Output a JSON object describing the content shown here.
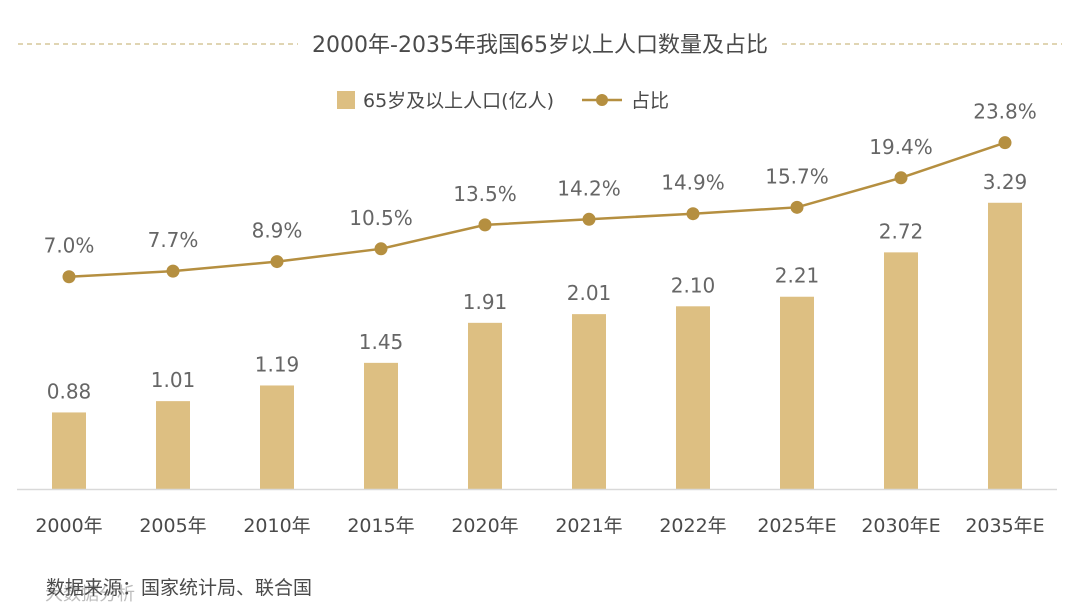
{
  "colors": {
    "bar": "#ddbf82",
    "line": "#b58f40",
    "dash": "#d6c79a",
    "axis": "#d9d9d9"
  },
  "chart_data": {
    "type": "bar",
    "title": "2000年-2035年我国65岁以上人口数量及占比",
    "categories": [
      "2000年",
      "2005年",
      "2010年",
      "2015年",
      "2020年",
      "2021年",
      "2022年",
      "2025年E",
      "2030年E",
      "2035年E"
    ],
    "series": [
      {
        "name": "65岁及以上人口(亿人)",
        "type": "bar",
        "values": [
          0.88,
          1.01,
          1.19,
          1.45,
          1.91,
          2.01,
          2.1,
          2.21,
          2.72,
          3.29
        ],
        "labels": [
          "0.88",
          "1.01",
          "1.19",
          "1.45",
          "1.91",
          "2.01",
          "2.10",
          "2.21",
          "2.72",
          "3.29"
        ]
      },
      {
        "name": "占比",
        "type": "line",
        "values": [
          7.0,
          7.7,
          8.9,
          10.5,
          13.5,
          14.2,
          14.9,
          15.7,
          19.4,
          23.8
        ],
        "labels": [
          "7.0%",
          "7.7%",
          "8.9%",
          "10.5%",
          "13.5%",
          "14.2%",
          "14.9%",
          "15.7%",
          "19.4%",
          "23.8%"
        ]
      }
    ],
    "legend_position": "top-center",
    "grid": false
  },
  "source": "数据来源：国家统计局、联合国",
  "watermark": "大数据分析"
}
